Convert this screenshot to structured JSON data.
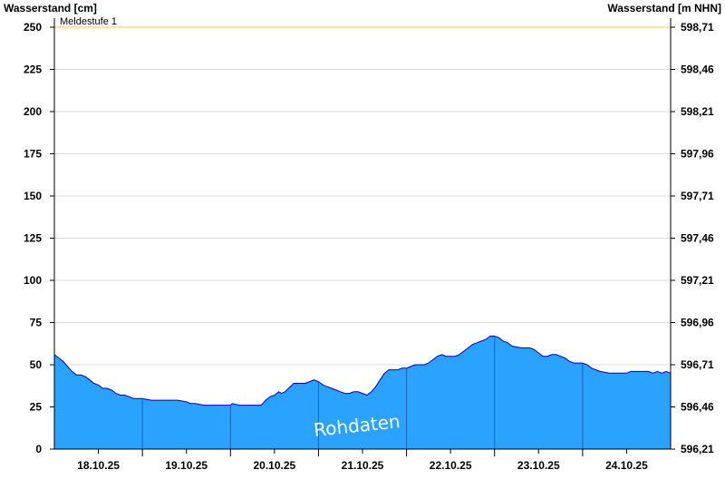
{
  "chart_data": {
    "type": "area",
    "y_left_label": "Wasserstand [cm]",
    "y_right_label": "Wasserstand [m NHN]",
    "y_left_ticks": [
      0,
      25,
      50,
      75,
      100,
      125,
      150,
      175,
      200,
      225,
      250
    ],
    "y_right_ticks": [
      "596,21",
      "596,46",
      "596,71",
      "596,96",
      "597,21",
      "597,46",
      "597,71",
      "597,96",
      "598,21",
      "598,46",
      "598,71"
    ],
    "ylim": [
      0,
      250
    ],
    "x_range_days": [
      17.0,
      24.0
    ],
    "x_ticks": [
      {
        "label": "18.10.25",
        "day": 17.5
      },
      {
        "label": "19.10.25",
        "day": 18.5
      },
      {
        "label": "20.10.25",
        "day": 19.5
      },
      {
        "label": "21.10.25",
        "day": 20.5
      },
      {
        "label": "22.10.25",
        "day": 21.5
      },
      {
        "label": "23.10.25",
        "day": 22.5
      },
      {
        "label": "24.10.25",
        "day": 23.5
      }
    ],
    "day_separators": [
      18,
      19,
      20,
      21,
      22,
      23
    ],
    "threshold": {
      "label": "Meldestufe 1",
      "value": 250,
      "color": "#f5c842"
    },
    "watermark": "Rohdaten",
    "fill_color": "#29a3ff",
    "line_color": "#0000cc",
    "series": [
      {
        "points": [
          [
            17.0,
            56
          ],
          [
            17.05,
            54
          ],
          [
            17.1,
            52
          ],
          [
            17.15,
            49
          ],
          [
            17.2,
            46
          ],
          [
            17.25,
            44
          ],
          [
            17.3,
            44
          ],
          [
            17.35,
            43
          ],
          [
            17.4,
            41
          ],
          [
            17.45,
            39
          ],
          [
            17.5,
            38
          ],
          [
            17.55,
            36
          ],
          [
            17.6,
            36
          ],
          [
            17.65,
            35
          ],
          [
            17.7,
            33
          ],
          [
            17.75,
            32
          ],
          [
            17.8,
            32
          ],
          [
            17.85,
            31
          ],
          [
            17.9,
            30
          ],
          [
            17.95,
            30
          ],
          [
            18.0,
            30
          ],
          [
            18.1,
            29
          ],
          [
            18.2,
            29
          ],
          [
            18.3,
            29
          ],
          [
            18.4,
            29
          ],
          [
            18.5,
            28
          ],
          [
            18.55,
            27
          ],
          [
            18.6,
            27
          ],
          [
            18.7,
            26
          ],
          [
            18.8,
            26
          ],
          [
            18.9,
            26
          ],
          [
            19.0,
            26
          ],
          [
            19.02,
            27
          ],
          [
            19.1,
            26
          ],
          [
            19.2,
            26
          ],
          [
            19.3,
            26
          ],
          [
            19.35,
            26
          ],
          [
            19.4,
            29
          ],
          [
            19.45,
            31
          ],
          [
            19.5,
            32
          ],
          [
            19.55,
            34
          ],
          [
            19.58,
            33
          ],
          [
            19.62,
            34
          ],
          [
            19.66,
            36
          ],
          [
            19.72,
            39
          ],
          [
            19.8,
            39
          ],
          [
            19.85,
            39
          ],
          [
            19.9,
            40
          ],
          [
            19.95,
            41
          ],
          [
            20.0,
            40
          ],
          [
            20.05,
            38
          ],
          [
            20.1,
            37
          ],
          [
            20.15,
            36
          ],
          [
            20.2,
            35
          ],
          [
            20.25,
            34
          ],
          [
            20.3,
            33
          ],
          [
            20.35,
            33
          ],
          [
            20.4,
            34
          ],
          [
            20.45,
            34
          ],
          [
            20.5,
            33
          ],
          [
            20.55,
            32
          ],
          [
            20.6,
            34
          ],
          [
            20.65,
            37
          ],
          [
            20.7,
            41
          ],
          [
            20.75,
            45
          ],
          [
            20.8,
            47
          ],
          [
            20.9,
            47
          ],
          [
            20.95,
            48
          ],
          [
            21.0,
            48
          ],
          [
            21.05,
            49
          ],
          [
            21.1,
            50
          ],
          [
            21.2,
            50
          ],
          [
            21.25,
            51
          ],
          [
            21.3,
            53
          ],
          [
            21.35,
            55
          ],
          [
            21.4,
            56
          ],
          [
            21.45,
            55
          ],
          [
            21.55,
            55
          ],
          [
            21.6,
            56
          ],
          [
            21.65,
            58
          ],
          [
            21.7,
            60
          ],
          [
            21.75,
            62
          ],
          [
            21.8,
            63
          ],
          [
            21.85,
            64
          ],
          [
            21.9,
            65
          ],
          [
            21.95,
            67
          ],
          [
            22.0,
            67
          ],
          [
            22.05,
            66
          ],
          [
            22.1,
            64
          ],
          [
            22.15,
            63
          ],
          [
            22.2,
            61
          ],
          [
            22.3,
            60
          ],
          [
            22.4,
            60
          ],
          [
            22.45,
            59
          ],
          [
            22.5,
            57
          ],
          [
            22.55,
            55
          ],
          [
            22.6,
            55
          ],
          [
            22.65,
            56
          ],
          [
            22.7,
            56
          ],
          [
            22.75,
            55
          ],
          [
            22.8,
            54
          ],
          [
            22.85,
            52
          ],
          [
            22.9,
            51
          ],
          [
            22.95,
            51
          ],
          [
            23.0,
            51
          ],
          [
            23.05,
            50
          ],
          [
            23.1,
            48
          ],
          [
            23.15,
            47
          ],
          [
            23.2,
            46
          ],
          [
            23.3,
            45
          ],
          [
            23.4,
            45
          ],
          [
            23.5,
            45
          ],
          [
            23.55,
            46
          ],
          [
            23.6,
            46
          ],
          [
            23.7,
            46
          ],
          [
            23.75,
            46
          ],
          [
            23.8,
            45
          ],
          [
            23.85,
            46
          ],
          [
            23.9,
            45
          ],
          [
            23.95,
            46
          ],
          [
            24.0,
            45
          ]
        ]
      }
    ]
  }
}
